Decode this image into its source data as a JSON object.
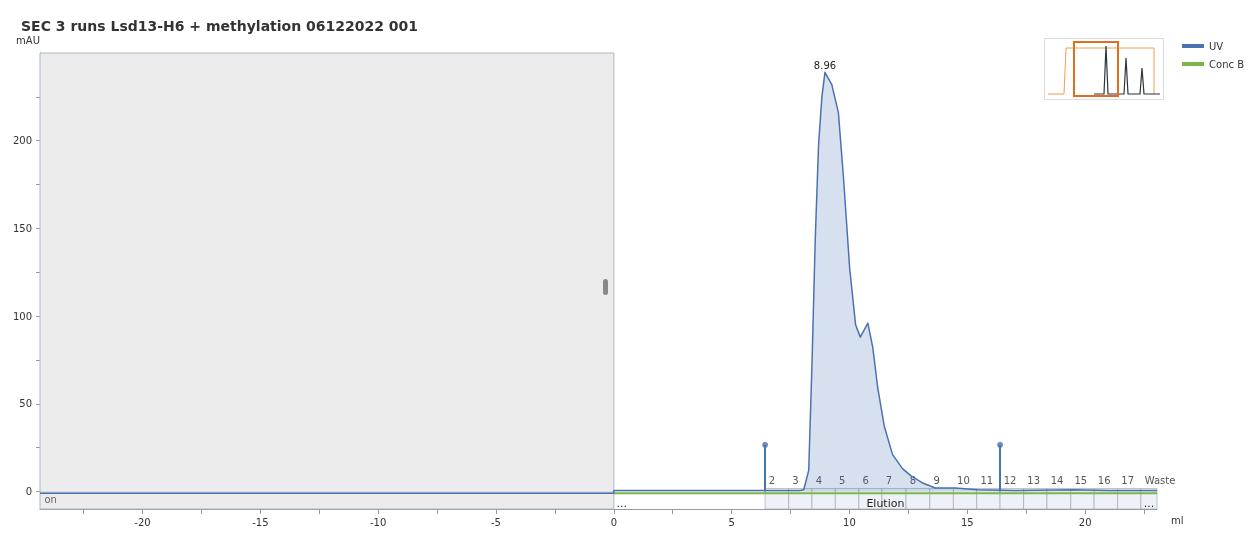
{
  "chart_data": {
    "type": "area",
    "title": "SEC 3 runs Lsd13-H6 + methylation 06122022 001",
    "ylabel": "mAU",
    "xlabel": "ml",
    "xlim": [
      -24.35,
      23.05
    ],
    "xticks": [
      {
        "value": -22.5,
        "label": null
      },
      -20,
      {
        "value": -17.5,
        "label": null
      },
      -15,
      {
        "value": -12.5,
        "label": null
      },
      -10,
      {
        "value": -7.5,
        "label": null
      },
      -5,
      {
        "value": -2.5,
        "label": null
      },
      0,
      {
        "value": 2.5,
        "label": null
      },
      5,
      {
        "value": 7.5,
        "label": null
      },
      10,
      {
        "value": 12.5,
        "label": null
      },
      15,
      {
        "value": 17.5,
        "label": null
      },
      20,
      {
        "value": 22.5,
        "label": null
      }
    ],
    "ylim": [
      -10,
      250
    ],
    "yticks": [
      0,
      {
        "value": 25,
        "label": null
      },
      50,
      {
        "value": 75,
        "label": null
      },
      100,
      {
        "value": 125,
        "label": null
      },
      150,
      {
        "value": 175,
        "label": null
      },
      200,
      {
        "value": 225,
        "label": null
      }
    ],
    "legend": "top right",
    "marker": "none",
    "line_style": "solid",
    "series": [
      {
        "name": "UV",
        "color": "#4a72b0",
        "x": [
          -24.35,
          -0.01,
          0,
          5,
          7.9,
          8.06,
          8.27,
          8.41,
          8.55,
          8.69,
          8.83,
          8.96,
          9.25,
          9.53,
          9.74,
          10.01,
          10.26,
          10.46,
          10.78,
          10.99,
          11.2,
          11.48,
          11.83,
          12.25,
          12.6,
          13.08,
          13.64,
          14.48,
          15.44,
          17,
          19.5,
          21,
          23.05
        ],
        "values": [
          -1,
          -1,
          0.5,
          0.5,
          0.6,
          1,
          12,
          73,
          145,
          198,
          225,
          239,
          232,
          216,
          180,
          127,
          95,
          88,
          96,
          82,
          59,
          37,
          21,
          13,
          9,
          5,
          2,
          2,
          1,
          0.5,
          1,
          0.5,
          0.5
        ]
      },
      {
        "name": "Conc B",
        "type": "line",
        "color": "#7ab648",
        "x": [
          0,
          23.05
        ],
        "values": [
          -1,
          -1
        ]
      },
      {
        "type": "lollipop",
        "color": "#4a72b0",
        "x": [
          6.42,
          16.39
        ],
        "values": [
          26.6,
          26.6
        ]
      }
    ],
    "grid": false,
    "bands": [
      {
        "axis": "x",
        "from": -24.35,
        "to": 0,
        "label": "on",
        "color": "#ececec"
      },
      {
        "axis": "x",
        "from": 6.42,
        "to": 7.42,
        "label": "2"
      },
      {
        "axis": "x",
        "from": 7.42,
        "to": 8.41,
        "label": "3"
      },
      {
        "axis": "x",
        "from": 8.41,
        "to": 9.4,
        "label": "4"
      },
      {
        "axis": "x",
        "from": 9.4,
        "to": 10.4,
        "label": "5"
      },
      {
        "axis": "x",
        "from": 10.4,
        "to": 11.38,
        "label": "6"
      },
      {
        "axis": "x",
        "from": 11.38,
        "to": 12.4,
        "label": "7"
      },
      {
        "axis": "x",
        "from": 12.4,
        "to": 13.41,
        "label": "8"
      },
      {
        "axis": "x",
        "from": 13.41,
        "to": 14.41,
        "label": "9"
      },
      {
        "axis": "x",
        "from": 14.41,
        "to": 15.4,
        "label": "10"
      },
      {
        "axis": "x",
        "from": 15.4,
        "to": 16.39,
        "label": "11"
      },
      {
        "axis": "x",
        "from": 16.39,
        "to": 17.39,
        "label": "12"
      },
      {
        "axis": "x",
        "from": 17.39,
        "to": 18.38,
        "label": "13"
      },
      {
        "axis": "x",
        "from": 18.38,
        "to": 19.39,
        "label": "14"
      },
      {
        "axis": "x",
        "from": 19.39,
        "to": 20.38,
        "label": "15"
      },
      {
        "axis": "x",
        "from": 20.38,
        "to": 21.38,
        "label": "16"
      },
      {
        "axis": "x",
        "from": 21.38,
        "to": 22.37,
        "label": "17"
      },
      {
        "axis": "x",
        "from": 22.37,
        "to": 23.05,
        "label": "Waste"
      }
    ],
    "annotations": [
      {
        "text": "8.96",
        "x": 8.96,
        "y": 239
      },
      "Elution",
      "...",
      "..."
    ]
  }
}
